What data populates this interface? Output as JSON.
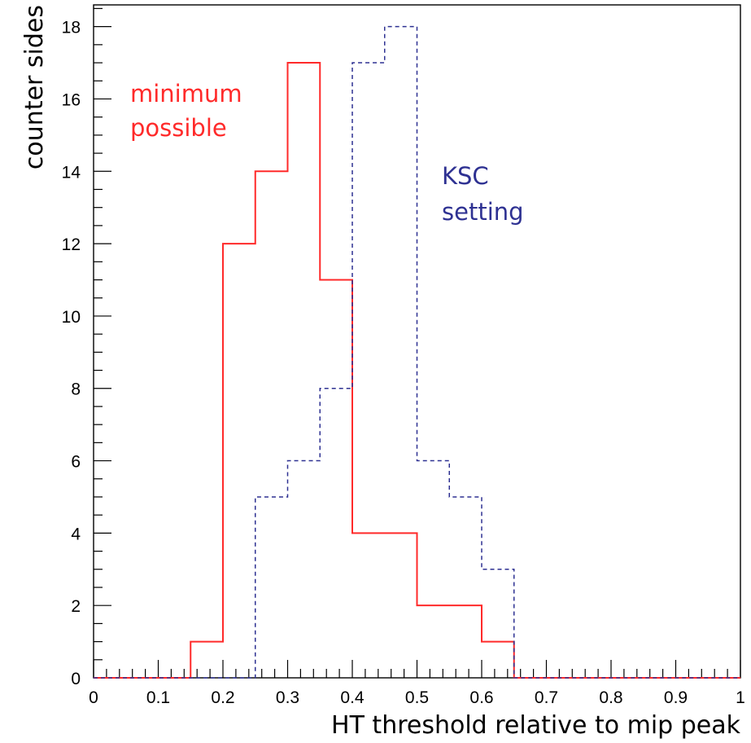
{
  "chart_data": {
    "type": "histogram",
    "xlabel": "HT threshold relative to mip peak",
    "ylabel": "counter sides",
    "xlim": [
      0,
      1
    ],
    "ylim": [
      0,
      18.6
    ],
    "xticks": [
      "0",
      "0.1",
      "0.2",
      "0.3",
      "0.4",
      "0.5",
      "0.6",
      "0.7",
      "0.8",
      "0.9",
      "1"
    ],
    "yticks": [
      "0",
      "2",
      "4",
      "6",
      "8",
      "10",
      "12",
      "14",
      "16",
      "18"
    ],
    "grid": false,
    "bin_edges": [
      0,
      0.05,
      0.1,
      0.15,
      0.2,
      0.25,
      0.3,
      0.35,
      0.4,
      0.45,
      0.5,
      0.55,
      0.6,
      0.65,
      0.7,
      0.75,
      0.8,
      0.85,
      0.9,
      0.95,
      1.0
    ],
    "series": [
      {
        "values": [
          0,
          0,
          0,
          1,
          12,
          14,
          17,
          11,
          4,
          4,
          2,
          2,
          1,
          0,
          0,
          0,
          0,
          0,
          0,
          0
        ],
        "color": "#ff2a2a",
        "line": "solid"
      },
      {
        "values": [
          0,
          0,
          0,
          0,
          0,
          5,
          6,
          8,
          17,
          18,
          6,
          5,
          3,
          0,
          0,
          0,
          0,
          0,
          0,
          0
        ],
        "color": "#2e3192",
        "line": "dashed"
      }
    ],
    "annotations": [
      {
        "lines": [
          "minimum",
          "possible"
        ],
        "color": "#ff2a2a"
      },
      {
        "lines": [
          "KSC",
          "setting"
        ],
        "color": "#2e3192"
      }
    ]
  }
}
